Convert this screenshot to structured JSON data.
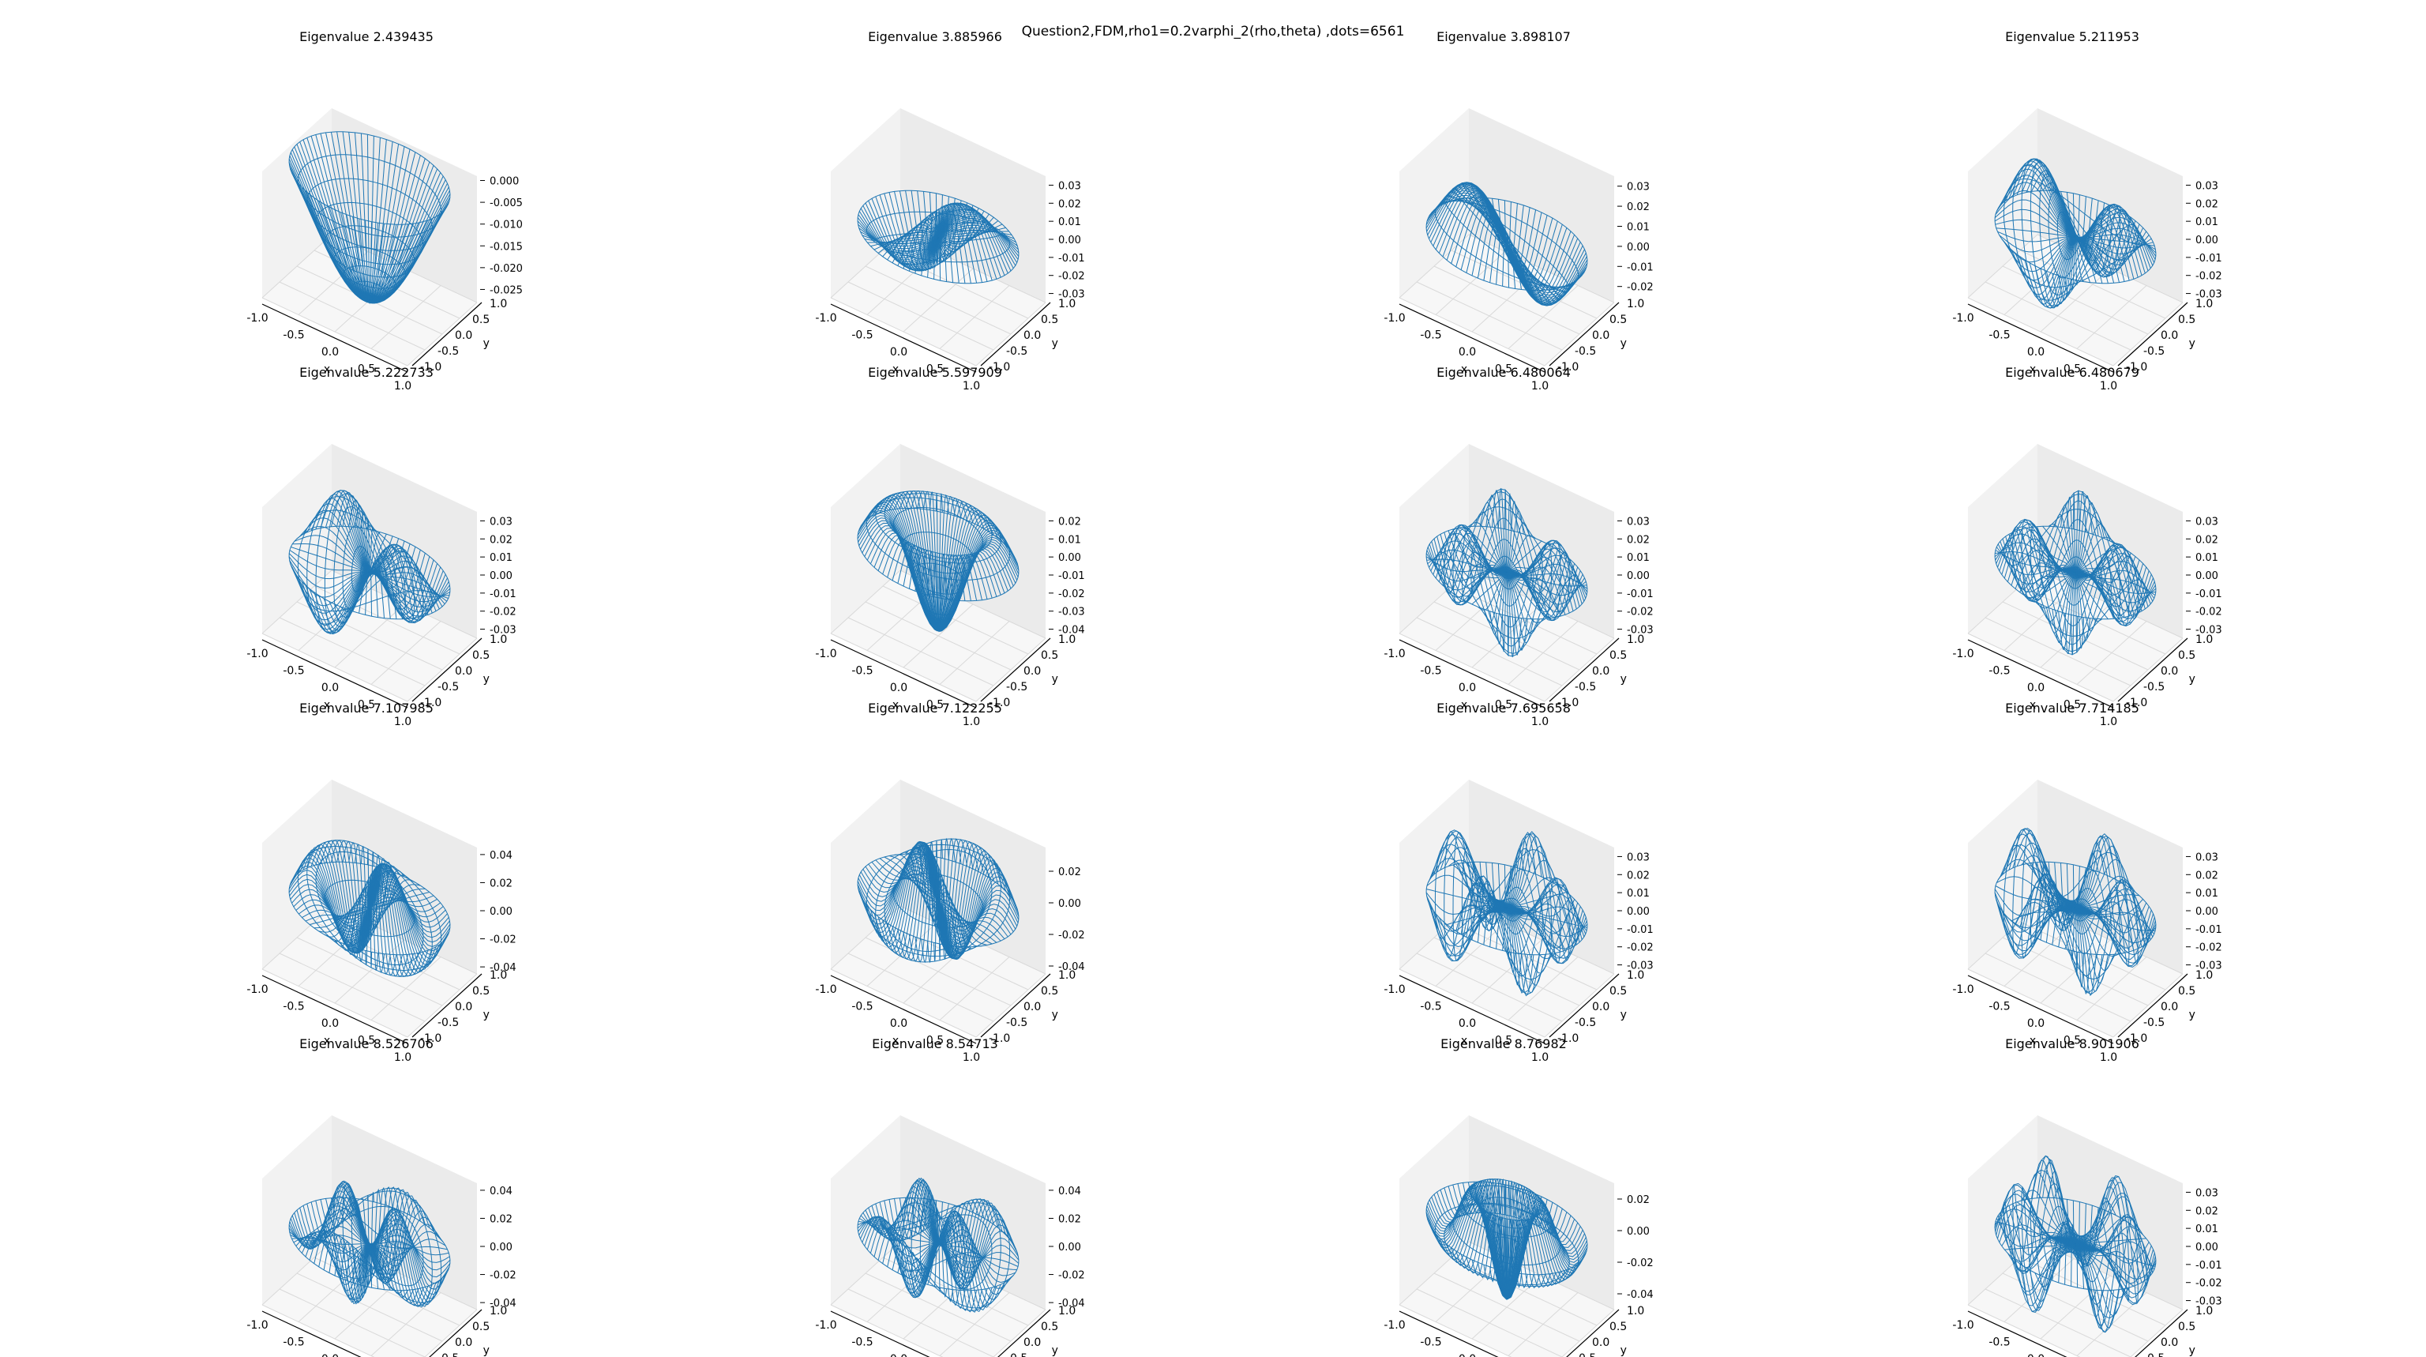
{
  "suptitle": "Question2,FDM,rho1=0.2varphi_2(rho,theta) ,dots=6561",
  "colors": {
    "surface": "#1f77b4",
    "pane_back": "#ebebeb",
    "pane_left": "#f2f2f2",
    "pane_floor": "#f7f7f7",
    "grid": "#d9d9d9"
  },
  "axes": {
    "xlabel": "x",
    "ylabel": "y",
    "x_ticks": [
      "-1.0",
      "-0.5",
      "0.0",
      "0.5",
      "1.0"
    ],
    "y_ticks": [
      "1.0",
      "0.5",
      "0.0",
      "-0.5",
      "-1.0"
    ]
  },
  "chart_data": [
    {
      "type": "surface3d",
      "title": "Eigenvalue 2.439435",
      "zticks": [
        "0.000",
        "-0.005",
        "-0.010",
        "-0.015",
        "-0.020",
        "-0.025"
      ],
      "zlim": [
        -0.028,
        0.001
      ],
      "mode": {
        "m": 0,
        "j": 1,
        "orient": "down",
        "amp": 0.028
      }
    },
    {
      "type": "surface3d",
      "title": "Eigenvalue 3.885966",
      "zticks": [
        "0.03",
        "0.02",
        "0.01",
        "0.00",
        "-0.01",
        "-0.02",
        "-0.03"
      ],
      "zlim": [
        -0.035,
        0.035
      ],
      "mode": {
        "m": 1,
        "j": 1,
        "phase": 0.6,
        "amp": 0.03
      }
    },
    {
      "type": "surface3d",
      "title": "Eigenvalue 3.898107",
      "zticks": [
        "0.03",
        "0.02",
        "0.01",
        "0.00",
        "-0.01",
        "-0.02"
      ],
      "zlim": [
        -0.028,
        0.035
      ],
      "mode": {
        "m": 1,
        "j": 1,
        "phase": 2.2,
        "amp": 0.03
      }
    },
    {
      "type": "surface3d",
      "title": "Eigenvalue 5.211953",
      "zticks": [
        "0.03",
        "0.02",
        "0.01",
        "0.00",
        "-0.01",
        "-0.02",
        "-0.03"
      ],
      "zlim": [
        -0.035,
        0.035
      ],
      "mode": {
        "m": 2,
        "j": 1,
        "phase": 0.3,
        "amp": 0.03
      }
    },
    {
      "type": "surface3d",
      "title": "Eigenvalue 5.222733",
      "zticks": [
        "0.03",
        "0.02",
        "0.01",
        "0.00",
        "-0.01",
        "-0.02",
        "-0.03"
      ],
      "zlim": [
        -0.035,
        0.035
      ],
      "mode": {
        "m": 2,
        "j": 1,
        "phase": 1.1,
        "amp": 0.03
      }
    },
    {
      "type": "surface3d",
      "title": "Eigenvalue 5.597909",
      "zticks": [
        "0.02",
        "0.01",
        "0.00",
        "-0.01",
        "-0.02",
        "-0.03",
        "-0.04"
      ],
      "zlim": [
        -0.045,
        0.025
      ],
      "mode": {
        "m": 0,
        "j": 2,
        "orient": "down",
        "amp": 0.042
      }
    },
    {
      "type": "surface3d",
      "title": "Eigenvalue 6.480064",
      "zticks": [
        "0.03",
        "0.02",
        "0.01",
        "0.00",
        "-0.01",
        "-0.02",
        "-0.03"
      ],
      "zlim": [
        -0.035,
        0.035
      ],
      "mode": {
        "m": 3,
        "j": 1,
        "phase": 0.0,
        "amp": 0.03
      }
    },
    {
      "type": "surface3d",
      "title": "Eigenvalue 6.480679",
      "zticks": [
        "0.03",
        "0.02",
        "0.01",
        "0.00",
        "-0.01",
        "-0.02",
        "-0.03"
      ],
      "zlim": [
        -0.035,
        0.035
      ],
      "mode": {
        "m": 3,
        "j": 1,
        "phase": 0.52,
        "amp": 0.03
      }
    },
    {
      "type": "surface3d",
      "title": "Eigenvalue 7.107985",
      "zticks": [
        "0.04",
        "0.02",
        "0.00",
        "-0.02",
        "-0.04"
      ],
      "zlim": [
        -0.045,
        0.045
      ],
      "mode": {
        "m": 1,
        "j": 2,
        "phase": 0.4,
        "amp": 0.04
      }
    },
    {
      "type": "surface3d",
      "title": "Eigenvalue 7.122255",
      "zticks": [
        "0.02",
        "0.00",
        "-0.02",
        "-0.04"
      ],
      "zlim": [
        -0.045,
        0.035
      ],
      "mode": {
        "m": 1,
        "j": 2,
        "phase": 1.9,
        "amp": 0.04
      }
    },
    {
      "type": "surface3d",
      "title": "Eigenvalue 7.695658",
      "zticks": [
        "0.03",
        "0.02",
        "0.01",
        "0.00",
        "-0.01",
        "-0.02",
        "-0.03"
      ],
      "zlim": [
        -0.035,
        0.035
      ],
      "mode": {
        "m": 4,
        "j": 1,
        "phase": 0.0,
        "amp": 0.03
      }
    },
    {
      "type": "surface3d",
      "title": "Eigenvalue 7.714185",
      "zticks": [
        "0.03",
        "0.02",
        "0.01",
        "0.00",
        "-0.01",
        "-0.02",
        "-0.03"
      ],
      "zlim": [
        -0.035,
        0.035
      ],
      "mode": {
        "m": 4,
        "j": 1,
        "phase": 0.39,
        "amp": 0.03
      }
    },
    {
      "type": "surface3d",
      "title": "Eigenvalue 8.526706",
      "zticks": [
        "0.04",
        "0.02",
        "0.00",
        "-0.02",
        "-0.04"
      ],
      "zlim": [
        -0.045,
        0.045
      ],
      "mode": {
        "m": 2,
        "j": 2,
        "phase": 0.2,
        "amp": 0.035
      }
    },
    {
      "type": "surface3d",
      "title": "Eigenvalue 8.54713",
      "zticks": [
        "0.04",
        "0.02",
        "0.00",
        "-0.02",
        "-0.04"
      ],
      "zlim": [
        -0.045,
        0.045
      ],
      "mode": {
        "m": 2,
        "j": 2,
        "phase": 1.0,
        "amp": 0.035
      }
    },
    {
      "type": "surface3d",
      "title": "Eigenvalue 8.76982",
      "zticks": [
        "0.02",
        "0.00",
        "-0.02",
        "-0.04"
      ],
      "zlim": [
        -0.05,
        0.03
      ],
      "mode": {
        "m": 0,
        "j": 3,
        "orient": "down",
        "amp": 0.045
      }
    },
    {
      "type": "surface3d",
      "title": "Eigenvalue 8.901906",
      "zticks": [
        "0.03",
        "0.02",
        "0.01",
        "0.00",
        "-0.01",
        "-0.02",
        "-0.03"
      ],
      "zlim": [
        -0.035,
        0.035
      ],
      "mode": {
        "m": 5,
        "j": 1,
        "phase": 0.0,
        "amp": 0.03
      }
    }
  ]
}
